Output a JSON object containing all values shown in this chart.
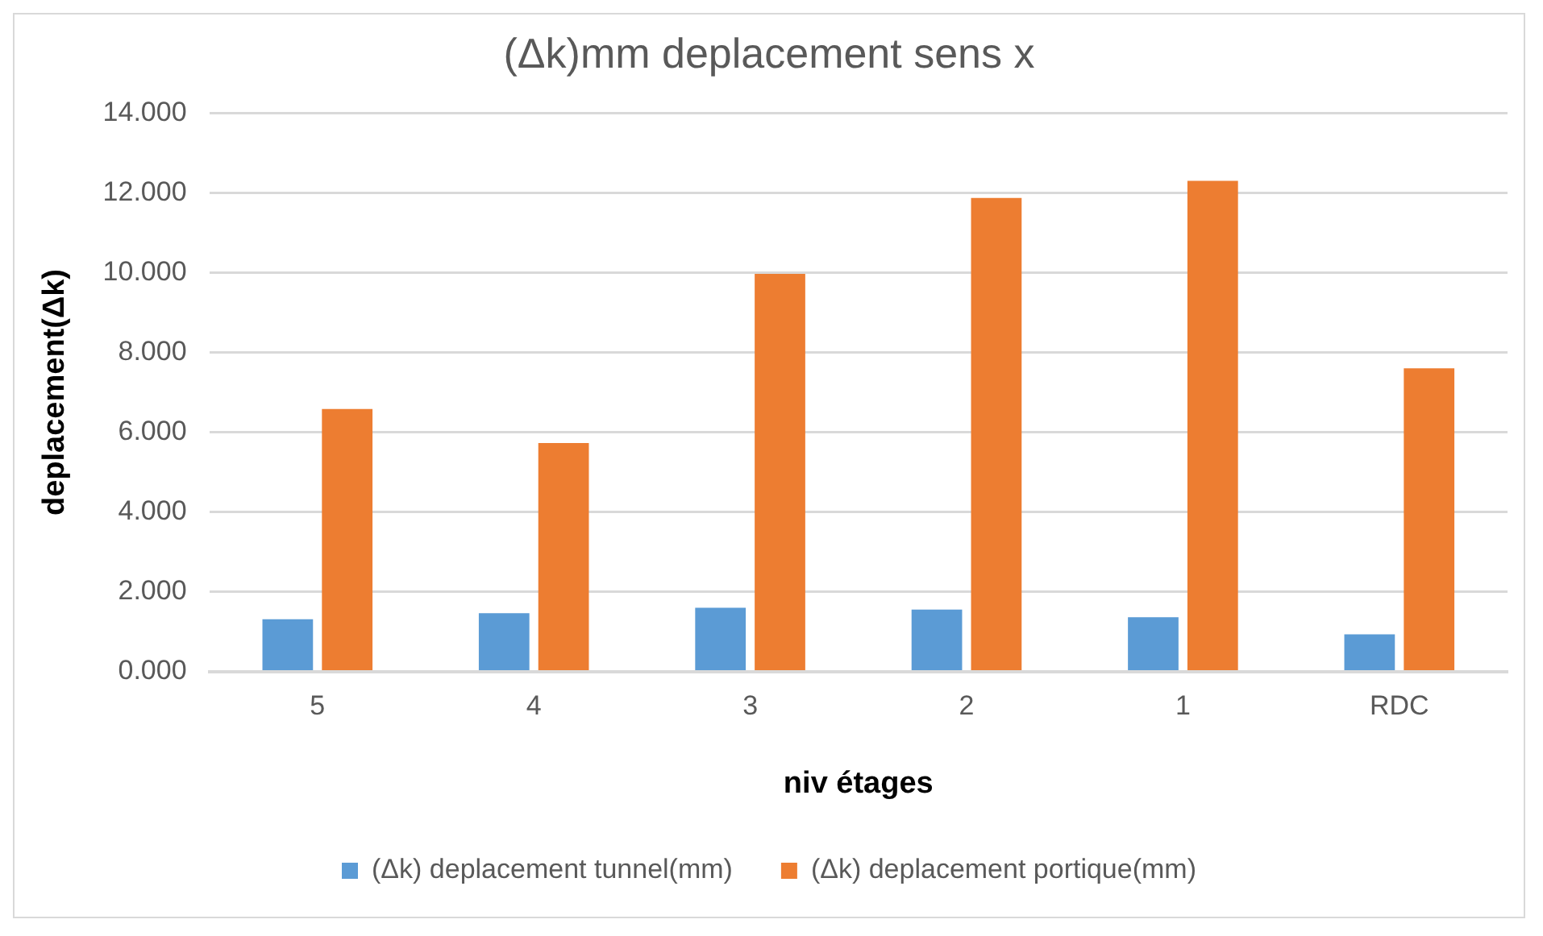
{
  "chart_data": {
    "type": "bar",
    "title": "(Δk)mm deplacement sens x",
    "xlabel": "niv étages",
    "ylabel": "deplacement(Δk)",
    "categories": [
      "5",
      "4",
      "3",
      "2",
      "1",
      "RDC"
    ],
    "series": [
      {
        "name": "(Δk) deplacement tunnel(mm)",
        "color": "#5b9bd5",
        "values": [
          1.31,
          1.46,
          1.6,
          1.55,
          1.36,
          0.93
        ]
      },
      {
        "name": "(Δk) deplacement portique(mm)",
        "color": "#ed7d31",
        "values": [
          6.58,
          5.73,
          9.97,
          11.87,
          12.3,
          7.6
        ]
      }
    ],
    "ylim": [
      0,
      14
    ],
    "yticks": [
      {
        "value": 0,
        "label": "0.000"
      },
      {
        "value": 2,
        "label": "2.000"
      },
      {
        "value": 4,
        "label": "4.000"
      },
      {
        "value": 6,
        "label": "6.000"
      },
      {
        "value": 8,
        "label": "8.000"
      },
      {
        "value": 10,
        "label": "10.000"
      },
      {
        "value": 12,
        "label": "12.000"
      },
      {
        "value": 14,
        "label": "14.000"
      }
    ],
    "grid": "y",
    "legend": "bottom"
  }
}
